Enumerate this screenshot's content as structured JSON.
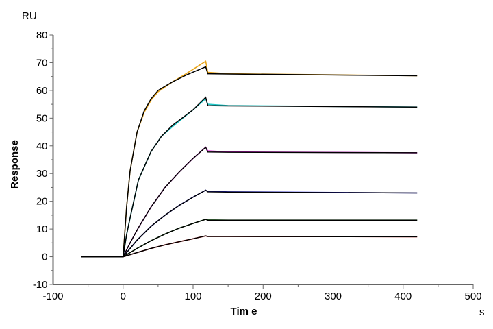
{
  "chart_data": {
    "type": "line",
    "unit_y": "RU",
    "ylabel": "Response",
    "xlabel": "Tim e",
    "unit_x": "s",
    "xlim": [
      -100,
      500
    ],
    "ylim": [
      -10,
      80
    ],
    "xticks": [
      -100,
      0,
      100,
      200,
      300,
      400,
      500
    ],
    "yticks": [
      -10,
      0,
      10,
      20,
      30,
      40,
      50,
      60,
      70,
      80
    ],
    "grid": false,
    "fit_color": "#000000",
    "series": [
      {
        "color": "#E8A317",
        "x": [
          -60,
          0,
          5,
          10,
          20,
          30,
          40,
          50,
          70,
          90,
          118,
          121,
          150,
          420
        ],
        "y": [
          0,
          0,
          18,
          31,
          45,
          52,
          56.5,
          59.5,
          63,
          66,
          70.5,
          66.5,
          66,
          65.3
        ],
        "fit": [
          0,
          0,
          18,
          31,
          45,
          52.5,
          57,
          60,
          63,
          65.5,
          68.5,
          66,
          65.9,
          65.3
        ]
      },
      {
        "color": "#20C8C8",
        "x": [
          -60,
          0,
          5,
          10,
          22,
          40,
          55,
          71,
          100,
          118,
          121,
          150,
          420
        ],
        "y": [
          0,
          0,
          8,
          14,
          27.7,
          38,
          43.5,
          47,
          53,
          57,
          55,
          54.5,
          54
        ],
        "fit": [
          0,
          0,
          8,
          14,
          27.7,
          38,
          43.5,
          47.5,
          53,
          57.5,
          54.5,
          54.4,
          54
        ]
      },
      {
        "color": "#E020E0",
        "x": [
          -60,
          0,
          10,
          22,
          40,
          60,
          80,
          100,
          118,
          121,
          150,
          420
        ],
        "y": [
          0,
          0,
          5,
          10.5,
          18,
          25,
          30.5,
          35.5,
          39.5,
          38.2,
          37.8,
          37.5
        ],
        "fit": [
          0,
          0,
          5,
          10.5,
          18,
          25,
          30.5,
          35.5,
          39.5,
          37.8,
          37.7,
          37.5
        ]
      },
      {
        "color": "#2020E0",
        "x": [
          -60,
          0,
          20,
          40,
          60,
          80,
          100,
          118,
          121,
          150,
          420
        ],
        "y": [
          0,
          0,
          6,
          11,
          15,
          18.5,
          21.5,
          24,
          23.6,
          23.4,
          23
        ],
        "fit": [
          0,
          0,
          6,
          11,
          15,
          18.5,
          21.5,
          24,
          23.4,
          23.3,
          23
        ]
      },
      {
        "color": "#208020",
        "x": [
          -60,
          0,
          20,
          40,
          60,
          80,
          100,
          118,
          121,
          150,
          420
        ],
        "y": [
          0,
          0,
          3,
          5.8,
          8.2,
          10.3,
          12,
          13.5,
          13.3,
          13.2,
          13.2
        ],
        "fit": [
          0,
          0,
          3,
          5.8,
          8.2,
          10.3,
          12,
          13.5,
          13.2,
          13.2,
          13.2
        ]
      },
      {
        "color": "#E02020",
        "x": [
          -60,
          0,
          20,
          40,
          60,
          80,
          100,
          118,
          121,
          150,
          420
        ],
        "y": [
          0,
          0,
          1.5,
          3,
          4.3,
          5.4,
          6.5,
          7.5,
          7.3,
          7.3,
          7.2
        ],
        "fit": [
          0,
          0,
          1.5,
          3,
          4.3,
          5.4,
          6.5,
          7.5,
          7.3,
          7.3,
          7.2
        ]
      }
    ]
  }
}
